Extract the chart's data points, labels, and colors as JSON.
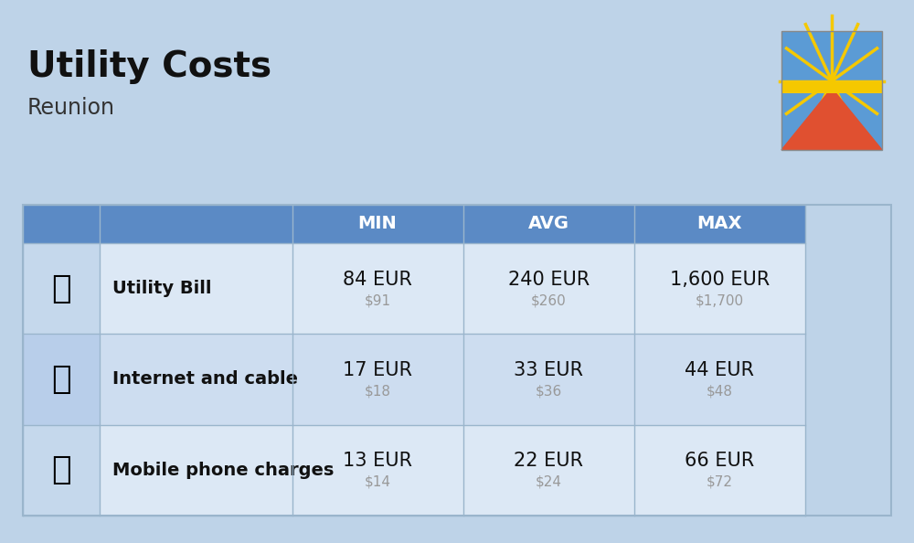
{
  "title": "Utility Costs",
  "subtitle": "Reunion",
  "background_color": "#bed3e8",
  "header_color": "#5b8ac5",
  "header_text_color": "#ffffff",
  "row_colors_even": "#dce8f5",
  "row_colors_odd": "#cdddf0",
  "icon_col_bg_even": "#c5d8ec",
  "icon_col_bg_odd": "#b8ceea",
  "rows": [
    {
      "label": "Utility Bill",
      "min_eur": "84 EUR",
      "min_usd": "$91",
      "avg_eur": "240 EUR",
      "avg_usd": "$260",
      "max_eur": "1,600 EUR",
      "max_usd": "$1,700"
    },
    {
      "label": "Internet and cable",
      "min_eur": "17 EUR",
      "min_usd": "$18",
      "avg_eur": "33 EUR",
      "avg_usd": "$36",
      "max_eur": "44 EUR",
      "max_usd": "$48"
    },
    {
      "label": "Mobile phone charges",
      "min_eur": "13 EUR",
      "min_usd": "$14",
      "avg_eur": "22 EUR",
      "avg_usd": "$24",
      "max_eur": "66 EUR",
      "max_usd": "$72"
    }
  ],
  "col_headers": [
    "MIN",
    "AVG",
    "MAX"
  ],
  "title_fontsize": 28,
  "subtitle_fontsize": 17,
  "header_fontsize": 14,
  "label_fontsize": 14,
  "value_fontsize": 15,
  "usd_fontsize": 11,
  "usd_color": "#999999",
  "line_color": "#9ab5cc",
  "flag_blue": "#5b9bd5",
  "flag_yellow": "#f5c800",
  "flag_red": "#e05030"
}
